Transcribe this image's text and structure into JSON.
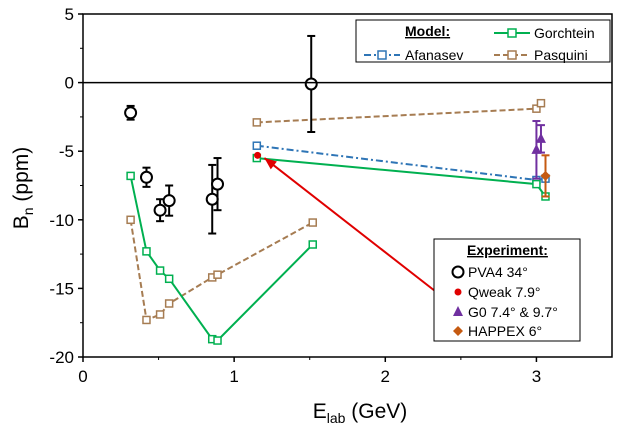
{
  "chart_data": {
    "type": "scatter",
    "xlabel_main": "E",
    "xlabel_sub": "lab",
    "xlabel_unit": " (GeV)",
    "ylabel_main": "B",
    "ylabel_sub": "n",
    "ylabel_unit": " (ppm)",
    "xlim": [
      0,
      3.5
    ],
    "ylim": [
      -20,
      5
    ],
    "xticks": [
      "0",
      "1",
      "2",
      "3"
    ],
    "yticks": [
      "5",
      "0",
      "-5",
      "-10",
      "-15",
      "-20"
    ],
    "model_legend": {
      "title": "Model:",
      "entries": [
        "Afanasev",
        "Gorchtein",
        "Pasquini"
      ]
    },
    "experiment_legend": {
      "title": "Experiment:",
      "entries": [
        "PVA4 34°",
        "Qweak 7.9°",
        "G0 7.4° & 9.7°",
        "HAPPEX 6°"
      ]
    },
    "colors": {
      "afanasev": "#2e75b6",
      "gorchtein": "#00b050",
      "pasquini": "#a67c52",
      "pva4": "#000000",
      "qweak": "#e00000",
      "g0": "#7030a0",
      "happex": "#c55a11",
      "arrow": "#e00000"
    },
    "models": {
      "gorchtein": {
        "name": "Gorchtein",
        "points": [
          [
            0.315,
            -6.8
          ],
          [
            0.42,
            -12.3
          ],
          [
            0.51,
            -13.7
          ],
          [
            0.57,
            -14.3
          ],
          [
            0.855,
            -18.7
          ],
          [
            0.89,
            -18.8
          ],
          [
            1.52,
            -11.8
          ]
        ],
        "points2": [
          [
            1.15,
            -5.5
          ],
          [
            3.0,
            -7.4
          ],
          [
            3.06,
            -8.3
          ]
        ]
      },
      "pasquini": {
        "name": "Pasquini",
        "points": [
          [
            0.315,
            -10.0
          ],
          [
            0.42,
            -17.3
          ],
          [
            0.51,
            -16.9
          ],
          [
            0.57,
            -16.1
          ],
          [
            0.855,
            -14.2
          ],
          [
            0.89,
            -14.0
          ],
          [
            1.52,
            -10.2
          ]
        ],
        "points2": [
          [
            1.15,
            -2.9
          ],
          [
            3.0,
            -1.9
          ],
          [
            3.03,
            -1.5
          ]
        ]
      },
      "afanasev": {
        "name": "Afanasev",
        "points": [
          [
            1.15,
            -4.6
          ],
          [
            3.0,
            -7.1
          ],
          [
            3.06,
            -7.0
          ]
        ]
      }
    },
    "pva4": [
      {
        "x": 0.315,
        "y": -2.2,
        "err": 0.5
      },
      {
        "x": 0.42,
        "y": -6.9,
        "err": 0.7
      },
      {
        "x": 0.51,
        "y": -9.3,
        "err": 0.8
      },
      {
        "x": 0.57,
        "y": -8.6,
        "err": 1.1
      },
      {
        "x": 0.855,
        "y": -8.5,
        "err": 2.5
      },
      {
        "x": 0.89,
        "y": -7.4,
        "err": 1.9
      },
      {
        "x": 1.51,
        "y": -0.1,
        "err": 3.5
      }
    ],
    "qweak": [
      {
        "x": 1.155,
        "y": -5.3,
        "err": 0.1
      }
    ],
    "g0": [
      {
        "x": 3.0,
        "y": -4.9,
        "err": 2.1
      },
      {
        "x": 3.03,
        "y": -4.1,
        "err": 1.0
      }
    ],
    "happex": [
      {
        "x": 3.06,
        "y": -6.8,
        "err": 1.5
      }
    ],
    "arrow": {
      "from": [
        2.33,
        -15.2
      ],
      "to": [
        1.2,
        -5.5
      ]
    }
  }
}
